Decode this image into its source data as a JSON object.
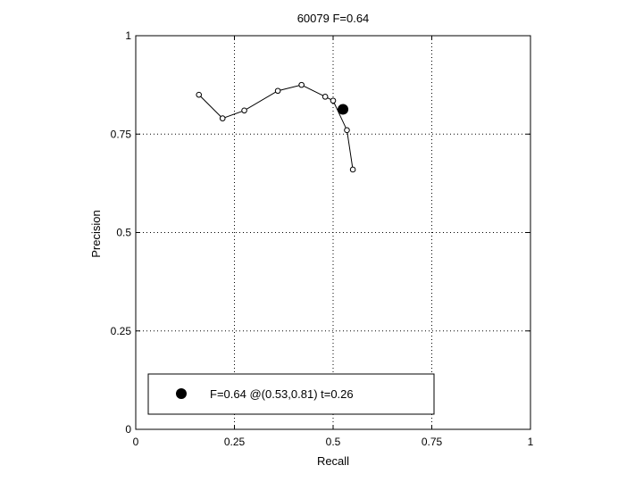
{
  "chart_data": {
    "type": "line",
    "title": "60079 F=0.64",
    "xlabel": "Recall",
    "ylabel": "Precision",
    "xlim": [
      0,
      1
    ],
    "ylim": [
      0,
      1
    ],
    "xticks": [
      0,
      0.25,
      0.5,
      0.75,
      1
    ],
    "yticks": [
      0,
      0.25,
      0.5,
      0.75,
      1
    ],
    "xtick_labels": [
      "0",
      "0.25",
      "0.5",
      "0.75",
      "1"
    ],
    "ytick_labels": [
      "0",
      "0.25",
      "0.5",
      "0.75",
      "1"
    ],
    "grid": true,
    "series": [
      {
        "x": [
          0.16,
          0.22,
          0.275,
          0.36,
          0.42,
          0.48,
          0.5,
          0.535,
          0.55
        ],
        "y": [
          0.85,
          0.79,
          0.81,
          0.86,
          0.875,
          0.845,
          0.835,
          0.76,
          0.66
        ],
        "marker": "open-circle",
        "color": "#000000"
      }
    ],
    "best_point": {
      "x": 0.525,
      "y": 0.813,
      "marker": "filled-circle",
      "color": "#000000"
    },
    "legend": {
      "placement": "bottom-left",
      "entries": [
        {
          "label": "F=0.64 @(0.53,0.81) t=0.26",
          "marker": "filled-circle"
        }
      ]
    }
  }
}
